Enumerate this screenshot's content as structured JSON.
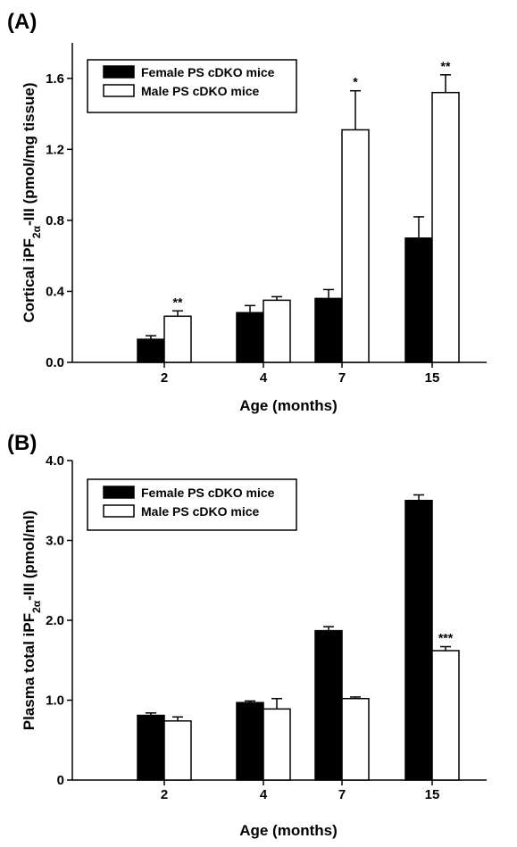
{
  "chart_data": [
    {
      "type": "bar",
      "panel_label": "(A)",
      "categories": [
        "2",
        "4",
        "7",
        "15"
      ],
      "xlabel": "Age (months)",
      "ylabel_parts": [
        "Cortical iPF",
        "2α",
        "-III (pmol/mg tissue)"
      ],
      "ylim": [
        0,
        1.8
      ],
      "yticks": [
        "0.0",
        "0.4",
        "0.8",
        "1.2",
        "1.6"
      ],
      "ytick_values": [
        0,
        0.4,
        0.8,
        1.2,
        1.6
      ],
      "legend_position": "top-left",
      "series": [
        {
          "name": "Female PS cDKO mice",
          "color": "#000000",
          "values": [
            0.13,
            0.28,
            0.36,
            0.7
          ],
          "errors": [
            0.02,
            0.04,
            0.05,
            0.12
          ]
        },
        {
          "name": "Male PS cDKO mice",
          "color": "#ffffff",
          "values": [
            0.26,
            0.35,
            1.31,
            1.52
          ],
          "errors": [
            0.03,
            0.02,
            0.22,
            0.1
          ]
        }
      ],
      "annotations": [
        {
          "category": "2",
          "series": 1,
          "text": "**"
        },
        {
          "category": "7",
          "series": 1,
          "text": "*"
        },
        {
          "category": "15",
          "series": 1,
          "text": "**"
        }
      ]
    },
    {
      "type": "bar",
      "panel_label": "(B)",
      "categories": [
        "2",
        "4",
        "7",
        "15"
      ],
      "xlabel": "Age (months)",
      "ylabel_parts": [
        "Plasma total iPF",
        "2α",
        "-III (pmol/ml)"
      ],
      "ylim": [
        0,
        4.0
      ],
      "yticks": [
        "0",
        "1.0",
        "2.0",
        "3.0",
        "4.0"
      ],
      "ytick_values": [
        0,
        1,
        2,
        3,
        4
      ],
      "legend_position": "top-left",
      "series": [
        {
          "name": "Female PS cDKO mice",
          "color": "#000000",
          "values": [
            0.81,
            0.97,
            1.87,
            3.5
          ],
          "errors": [
            0.03,
            0.02,
            0.05,
            0.07
          ]
        },
        {
          "name": "Male PS cDKO mice",
          "color": "#ffffff",
          "values": [
            0.74,
            0.89,
            1.02,
            1.62
          ],
          "errors": [
            0.05,
            0.13,
            0.02,
            0.05
          ]
        }
      ],
      "annotations": [
        {
          "category": "15",
          "series": 1,
          "text": "***"
        }
      ]
    }
  ]
}
